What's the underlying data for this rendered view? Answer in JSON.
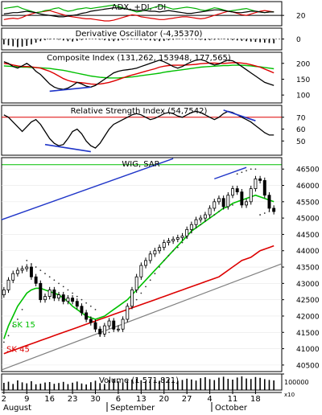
{
  "colors": {
    "frame": "#000000",
    "price": "#000000",
    "sar": "#333333",
    "ma_short": "#00c000",
    "ma_long": "#dd0000",
    "trend_blue": "#1f35c8",
    "trend_gray": "#808080",
    "adx": "#000000",
    "plus_di": "#00b000",
    "minus_di": "#dd0000",
    "signal_red": "#dd0000",
    "signal_green": "#00c000"
  },
  "chart_data": [
    {
      "type": "line",
      "title": "ADX, +DI, -DI",
      "yticks": [
        20
      ],
      "ylim": [
        5,
        40
      ],
      "series": [
        {
          "name": "ADX",
          "values": [
            22,
            23,
            24,
            24,
            25,
            26,
            25,
            24,
            22,
            21,
            20,
            19,
            18,
            18,
            19,
            20,
            21,
            23,
            24,
            26,
            27,
            28,
            29,
            30,
            31,
            31,
            30,
            29,
            28,
            27,
            27,
            27,
            26,
            26,
            25,
            26,
            27,
            26,
            25,
            24,
            23,
            23,
            24,
            25,
            26,
            27,
            28,
            28,
            27,
            26,
            25,
            24,
            24,
            25,
            26,
            26,
            25,
            24,
            25,
            25
          ]
        },
        {
          "name": "+DI",
          "values": [
            30,
            31,
            32,
            33,
            30,
            28,
            26,
            24,
            25,
            27,
            28,
            30,
            31,
            28,
            26,
            27,
            29,
            30,
            31,
            30,
            31,
            32,
            33,
            34,
            35,
            33,
            31,
            29,
            27,
            25,
            26,
            28,
            30,
            32,
            34,
            33,
            31,
            29,
            30,
            31,
            32,
            31,
            30,
            28,
            27,
            29,
            31,
            30,
            28,
            26,
            27,
            28,
            29,
            30,
            28,
            26,
            25,
            24,
            25,
            25
          ]
        },
        {
          "name": "-DI",
          "values": [
            14,
            15,
            16,
            15,
            17,
            20,
            22,
            24,
            25,
            26,
            27,
            25,
            23,
            21,
            19,
            18,
            17,
            16,
            15,
            15,
            14,
            13,
            12,
            12,
            13,
            15,
            17,
            19,
            21,
            20,
            18,
            17,
            16,
            15,
            14,
            14,
            15,
            16,
            17,
            18,
            18,
            17,
            16,
            15,
            16,
            18,
            20,
            22,
            24,
            26,
            25,
            23,
            21,
            20,
            22,
            24,
            26,
            27,
            26,
            25
          ]
        }
      ]
    },
    {
      "type": "bar",
      "title": "Derivative Oscillator (-4,35370)",
      "yticks": [
        0
      ],
      "ylim": [
        -60,
        60
      ],
      "values": [
        -30,
        -35,
        -40,
        -45,
        -42,
        -38,
        -30,
        -20,
        -12,
        -6,
        -3,
        -2,
        -4,
        -8,
        -12,
        -14,
        -10,
        -6,
        -3,
        -1,
        -2,
        -4,
        -7,
        -10,
        -12,
        -9,
        -6,
        -3,
        -2,
        -3,
        -5,
        -6,
        -8,
        -10,
        -12,
        -10,
        -7,
        -4,
        -2,
        -1,
        -1,
        -2,
        -3,
        -5,
        -7,
        -6,
        -4,
        -3,
        -2,
        -4,
        -6,
        -8,
        -10,
        -12,
        -14,
        -16,
        -18,
        -20,
        -22,
        -24
      ]
    },
    {
      "type": "line",
      "title": "Composite Index (131,262, 153948, 177,565)",
      "yticks": [
        100,
        150,
        200
      ],
      "ylim": [
        75,
        235
      ],
      "series": [
        {
          "name": "Composite Index",
          "values": [
            205,
            200,
            190,
            185,
            192,
            200,
            190,
            175,
            165,
            150,
            135,
            125,
            120,
            118,
            122,
            130,
            140,
            135,
            128,
            125,
            130,
            140,
            150,
            160,
            170,
            175,
            178,
            180,
            182,
            185,
            190,
            195,
            200,
            205,
            210,
            205,
            198,
            190,
            185,
            190,
            198,
            205,
            210,
            212,
            208,
            200,
            195,
            198,
            205,
            210,
            208,
            200,
            190,
            180,
            170,
            160,
            150,
            140,
            135,
            130
          ]
        },
        {
          "name": "Fast MA",
          "values": [
            200,
            198,
            195,
            192,
            190,
            190,
            189,
            187,
            185,
            180,
            175,
            168,
            160,
            152,
            146,
            142,
            140,
            139,
            137,
            135,
            134,
            135,
            137,
            140,
            144,
            149,
            154,
            159,
            163,
            167,
            171,
            175,
            179,
            183,
            188,
            191,
            193,
            194,
            194,
            194,
            195,
            196,
            197,
            199,
            200,
            201,
            201,
            200,
            200,
            201,
            202,
            202,
            201,
            199,
            196,
            192,
            188,
            182,
            176,
            170
          ]
        },
        {
          "name": "Slow MA",
          "values": [
            192,
            191,
            190,
            189,
            188,
            188,
            187,
            187,
            186,
            185,
            184,
            182,
            180,
            178,
            175,
            172,
            169,
            166,
            163,
            160,
            158,
            156,
            155,
            154,
            154,
            154,
            155,
            156,
            157,
            159,
            161,
            163,
            165,
            167,
            169,
            172,
            174,
            176,
            178,
            180,
            182,
            184,
            186,
            188,
            189,
            190,
            191,
            192,
            193,
            193,
            194,
            194,
            194,
            193,
            192,
            190,
            189,
            187,
            185,
            183
          ]
        }
      ]
    },
    {
      "type": "line",
      "title": "Relative Strength Index (54,7542)",
      "yticks": [
        50,
        60,
        70
      ],
      "ylim": [
        38,
        80
      ],
      "hlines": [
        70,
        30
      ],
      "series": [
        {
          "name": "RSI",
          "values": [
            72,
            70,
            66,
            62,
            58,
            62,
            66,
            68,
            64,
            58,
            52,
            48,
            46,
            47,
            52,
            58,
            60,
            56,
            50,
            46,
            44,
            48,
            54,
            60,
            64,
            66,
            68,
            70,
            72,
            73,
            72,
            70,
            68,
            69,
            71,
            73,
            74,
            73,
            71,
            70,
            72,
            74,
            75,
            74,
            72,
            70,
            68,
            70,
            73,
            75,
            74,
            72,
            70,
            68,
            66,
            63,
            60,
            57,
            55,
            55
          ]
        }
      ]
    },
    {
      "type": "line",
      "title": "WIG, SAR",
      "yticks": [
        40500,
        41000,
        41500,
        42000,
        42500,
        43000,
        43500,
        44000,
        44500,
        45000,
        45500,
        46000,
        46500
      ],
      "ylim": [
        40300,
        46850
      ],
      "xtick_labels": [
        "2",
        "9",
        "16",
        "23",
        "30",
        "6",
        "13",
        "20",
        "27",
        "4",
        "11",
        "18"
      ],
      "month_labels": [
        "August",
        "September",
        "October"
      ],
      "ma_labels": [
        "SK 15",
        "SK 45"
      ],
      "series": [
        {
          "name": "WIG",
          "values": [
            42800,
            43100,
            43300,
            43400,
            43450,
            43500,
            43200,
            43000,
            42500,
            42600,
            42800,
            42550,
            42650,
            42450,
            42550,
            42450,
            42300,
            42100,
            41900,
            41800,
            41600,
            41450,
            41700,
            41850,
            41600,
            41600,
            41900,
            42300,
            42800,
            43200,
            43550,
            43700,
            43900,
            44000,
            44100,
            44250,
            44300,
            44350,
            44400,
            44450,
            44650,
            44800,
            44950,
            45000,
            45100,
            45300,
            45500,
            45600,
            45350,
            45700,
            45900,
            45800,
            45400,
            45500,
            45900,
            46200,
            46150,
            45700,
            45300,
            45200
          ]
        },
        {
          "name": "SAR",
          "values": [
            41200,
            41400,
            41700,
            41900,
            42200,
            43700,
            43600,
            43500,
            43400,
            43300,
            43200,
            43100,
            43000,
            42900,
            42800,
            42700,
            42600,
            42500,
            42400,
            42300,
            42200,
            41400,
            41450,
            41500,
            41600,
            41700,
            41900,
            42100,
            42300,
            42500,
            42700,
            42900,
            43100,
            43300,
            43500,
            43700,
            43850,
            44000,
            44100,
            44250,
            44400,
            44550,
            44700,
            44800,
            44900,
            45000,
            45100,
            45200,
            45300,
            45350,
            45400,
            46350,
            46400,
            46450,
            46500,
            46500,
            45100,
            45150,
            45200,
            45250
          ]
        },
        {
          "name": "SK 15",
          "values": [
            41300,
            41700,
            42000,
            42300,
            42500,
            42700,
            42800,
            42850,
            42850,
            42800,
            42750,
            42700,
            42650,
            42550,
            42450,
            42300,
            42200,
            42100,
            42000,
            41950,
            41900,
            41950,
            42000,
            42100,
            42200,
            42300,
            42400,
            42500,
            42650,
            42800,
            42950,
            43100,
            43250,
            43400,
            43550,
            43700,
            43850,
            44000,
            44150,
            44300,
            44450,
            44600,
            44700,
            44800,
            44900,
            45000,
            45100,
            45200,
            45300,
            45350,
            45450,
            45500,
            45550,
            45600,
            45650,
            45700,
            45650,
            45600,
            45550,
            45500
          ]
        },
        {
          "name": "SK 45",
          "values": [
            40850,
            40900,
            40950,
            41000,
            41050,
            41100,
            41150,
            41200,
            41250,
            41300,
            41350,
            41400,
            41450,
            41500,
            41550,
            41600,
            41650,
            41700,
            41750,
            41800,
            41850,
            41900,
            41950,
            42000,
            42050,
            42100,
            42150,
            42200,
            42250,
            42300,
            42350,
            42400,
            42450,
            42500,
            42550,
            42600,
            42650,
            42700,
            42750,
            42800,
            42850,
            42900,
            42950,
            43000,
            43050,
            43100,
            43150,
            43200,
            43300,
            43400,
            43500,
            43600,
            43700,
            43750,
            43800,
            43900,
            44000,
            44050,
            44100,
            44150
          ]
        }
      ]
    },
    {
      "type": "bar",
      "title": "Volume (1,571,821)",
      "yticks": [
        100000
      ],
      "ytick_label": "100000",
      "unit": "x10",
      "ylim": [
        0,
        100000
      ],
      "values": [
        45000,
        52000,
        38000,
        60000,
        48000,
        42000,
        55000,
        36000,
        40000,
        47000,
        50000,
        39000,
        44000,
        51000,
        37000,
        46000,
        53000,
        41000,
        35000,
        49000,
        58000,
        43000,
        38000,
        62000,
        70000,
        54000,
        47000,
        59000,
        66000,
        72000,
        61000,
        55000,
        68000,
        64000,
        58000,
        73000,
        69000,
        60000,
        57000,
        63000,
        71000,
        66000,
        59000,
        74000,
        80000,
        68000,
        62000,
        77000,
        83000,
        70000,
        65000,
        78000,
        85000,
        72000,
        69000,
        81000,
        76000,
        68000,
        63000,
        60000
      ]
    }
  ]
}
